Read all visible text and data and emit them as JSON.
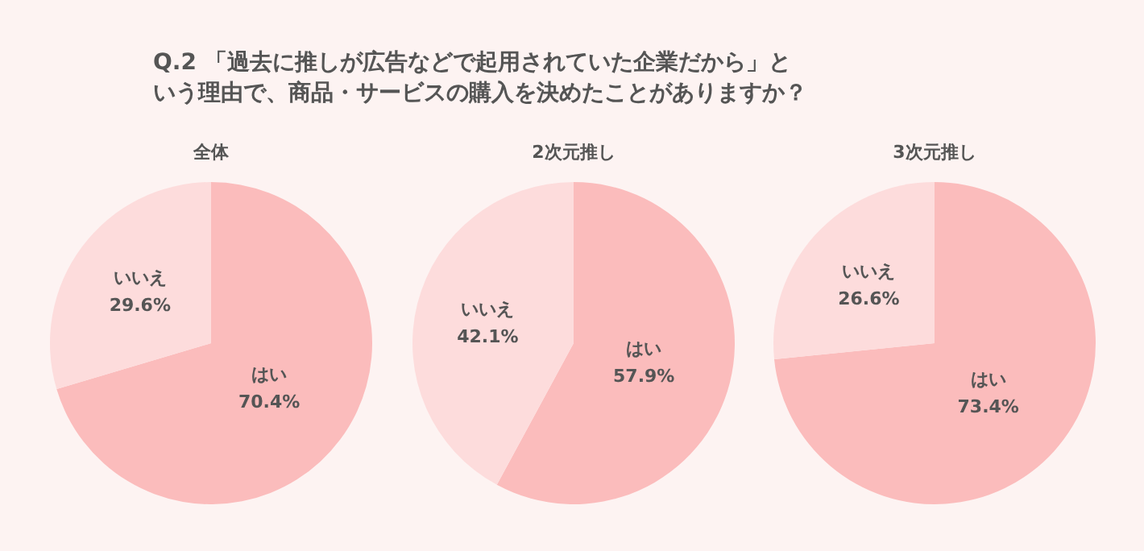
{
  "chart_data": [
    {
      "type": "pie",
      "title": "Q.2 「過去に推しが広告などで起用されていた企業だから」という理由で、商品・サービスの購入を決めたことがありますか？",
      "subtitle": "全体",
      "categories": [
        "はい",
        "いいえ"
      ],
      "values": [
        70.4,
        29.6
      ],
      "value_labels": [
        "70.4%",
        "29.6%"
      ],
      "colors": [
        "#fbbcbc",
        "#fddcdc"
      ]
    },
    {
      "type": "pie",
      "subtitle": "2次元推し",
      "categories": [
        "はい",
        "いいえ"
      ],
      "values": [
        57.9,
        42.1
      ],
      "value_labels": [
        "57.9%",
        "42.1%"
      ],
      "colors": [
        "#fbbcbc",
        "#fddcdc"
      ]
    },
    {
      "type": "pie",
      "subtitle": "3次元推し",
      "categories": [
        "はい",
        "いいえ"
      ],
      "values": [
        73.4,
        26.6
      ],
      "value_labels": [
        "73.4%",
        "26.6%"
      ],
      "colors": [
        "#fbbcbc",
        "#fddcdc"
      ]
    }
  ]
}
